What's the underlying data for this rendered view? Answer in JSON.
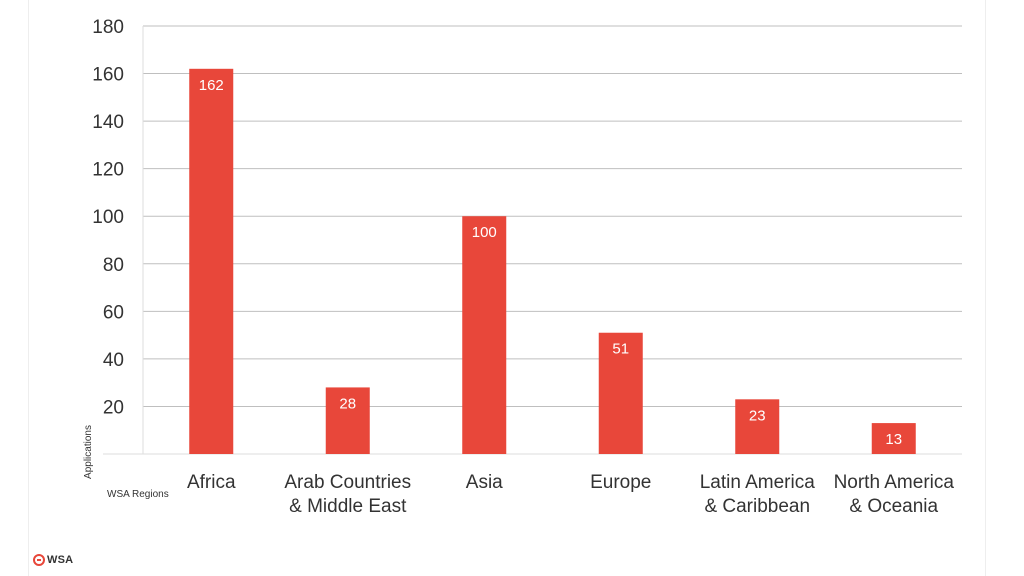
{
  "colors": {
    "bar": "#e8473a",
    "grid": "#bfbfbf",
    "text": "#333333",
    "brand": "#e8473a"
  },
  "logo": {
    "text": "WSA",
    "icon": "wsa-logo-icon"
  },
  "chart_data": {
    "type": "bar",
    "title": "",
    "xlabel": "WSA Regions",
    "ylabel": "Applications",
    "ylim": [
      0,
      180
    ],
    "yticks": [
      20,
      40,
      60,
      80,
      100,
      120,
      140,
      160,
      180
    ],
    "grid": true,
    "legend": "none",
    "categories": [
      [
        "Africa"
      ],
      [
        "Arab Countries",
        "& Middle East"
      ],
      [
        "Asia"
      ],
      [
        "Europe"
      ],
      [
        "Latin America",
        "& Caribbean"
      ],
      [
        "North America",
        "& Oceania"
      ]
    ],
    "values": [
      162,
      28,
      100,
      51,
      23,
      13
    ]
  }
}
